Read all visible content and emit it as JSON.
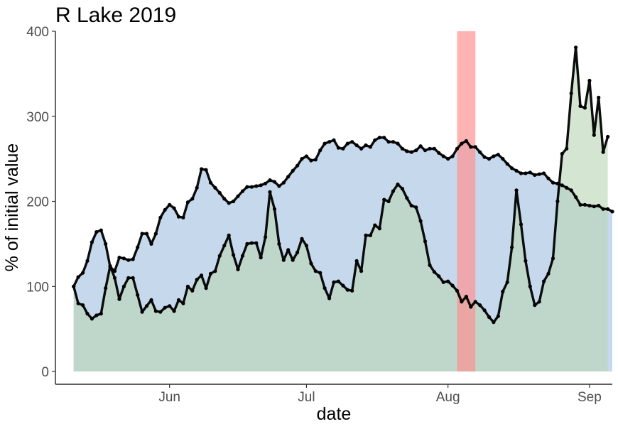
{
  "chart_data": {
    "type": "area",
    "title": "R Lake 2019",
    "xlabel": "date",
    "ylabel": "% of initial value",
    "xlim": [
      "2019-05-07",
      "2019-09-06"
    ],
    "ylim": [
      -15,
      400
    ],
    "x_ticks": [
      {
        "date": "2019-06-01",
        "label": "Jun"
      },
      {
        "date": "2019-07-01",
        "label": "Jul"
      },
      {
        "date": "2019-08-01",
        "label": "Aug"
      },
      {
        "date": "2019-09-01",
        "label": "Sep"
      }
    ],
    "y_ticks": [
      0,
      100,
      200,
      300,
      400
    ],
    "grid": false,
    "legend": "none",
    "highlight": {
      "start": "2019-08-03",
      "end": "2019-08-07",
      "color": "#ff8f8f"
    },
    "series": [
      {
        "color": "#c6d8ec",
        "points": [
          [
            "2019-05-11",
            100
          ],
          [
            "2019-05-12",
            111
          ],
          [
            "2019-05-13",
            116
          ],
          [
            "2019-05-14",
            130
          ],
          [
            "2019-05-15",
            152
          ],
          [
            "2019-05-16",
            164
          ],
          [
            "2019-05-17",
            166
          ],
          [
            "2019-05-18",
            150
          ],
          [
            "2019-05-19",
            123
          ],
          [
            "2019-05-20",
            118
          ],
          [
            "2019-05-21",
            134
          ],
          [
            "2019-05-22",
            133
          ],
          [
            "2019-05-23",
            131
          ],
          [
            "2019-05-24",
            132
          ],
          [
            "2019-05-25",
            146
          ],
          [
            "2019-05-26",
            162
          ],
          [
            "2019-05-27",
            162
          ],
          [
            "2019-05-28",
            150
          ],
          [
            "2019-05-29",
            162
          ],
          [
            "2019-05-30",
            181
          ],
          [
            "2019-05-31",
            190
          ],
          [
            "2019-06-01",
            196
          ],
          [
            "2019-06-02",
            192
          ],
          [
            "2019-06-03",
            182
          ],
          [
            "2019-06-04",
            181
          ],
          [
            "2019-06-05",
            199
          ],
          [
            "2019-06-06",
            203
          ],
          [
            "2019-06-07",
            216
          ],
          [
            "2019-06-08",
            238
          ],
          [
            "2019-06-09",
            237
          ],
          [
            "2019-06-10",
            222
          ],
          [
            "2019-06-11",
            216
          ],
          [
            "2019-06-12",
            210
          ],
          [
            "2019-06-13",
            203
          ],
          [
            "2019-06-14",
            198
          ],
          [
            "2019-06-15",
            200
          ],
          [
            "2019-06-16",
            206
          ],
          [
            "2019-06-17",
            212
          ],
          [
            "2019-06-18",
            217
          ],
          [
            "2019-06-19",
            217
          ],
          [
            "2019-06-20",
            218
          ],
          [
            "2019-06-21",
            219
          ],
          [
            "2019-06-22",
            221
          ],
          [
            "2019-06-23",
            225
          ],
          [
            "2019-06-24",
            223
          ],
          [
            "2019-06-25",
            218
          ],
          [
            "2019-06-26",
            222
          ],
          [
            "2019-06-27",
            229
          ],
          [
            "2019-06-28",
            236
          ],
          [
            "2019-06-29",
            242
          ],
          [
            "2019-06-30",
            250
          ],
          [
            "2019-07-01",
            253
          ],
          [
            "2019-07-02",
            248
          ],
          [
            "2019-07-03",
            249
          ],
          [
            "2019-07-04",
            260
          ],
          [
            "2019-07-05",
            268
          ],
          [
            "2019-07-06",
            270
          ],
          [
            "2019-07-07",
            272
          ],
          [
            "2019-07-08",
            263
          ],
          [
            "2019-07-09",
            262
          ],
          [
            "2019-07-10",
            268
          ],
          [
            "2019-07-11",
            270
          ],
          [
            "2019-07-12",
            266
          ],
          [
            "2019-07-13",
            262
          ],
          [
            "2019-07-14",
            266
          ],
          [
            "2019-07-15",
            264
          ],
          [
            "2019-07-16",
            272
          ],
          [
            "2019-07-17",
            275
          ],
          [
            "2019-07-18",
            275
          ],
          [
            "2019-07-19",
            270
          ],
          [
            "2019-07-20",
            270
          ],
          [
            "2019-07-21",
            268
          ],
          [
            "2019-07-22",
            262
          ],
          [
            "2019-07-23",
            259
          ],
          [
            "2019-07-24",
            258
          ],
          [
            "2019-07-25",
            260
          ],
          [
            "2019-07-26",
            265
          ],
          [
            "2019-07-27",
            260
          ],
          [
            "2019-07-28",
            262
          ],
          [
            "2019-07-29",
            262
          ],
          [
            "2019-07-30",
            257
          ],
          [
            "2019-07-31",
            253
          ],
          [
            "2019-08-01",
            250
          ],
          [
            "2019-08-02",
            253
          ],
          [
            "2019-08-03",
            262
          ],
          [
            "2019-08-04",
            268
          ],
          [
            "2019-08-05",
            271
          ],
          [
            "2019-08-06",
            264
          ],
          [
            "2019-08-07",
            264
          ],
          [
            "2019-08-08",
            258
          ],
          [
            "2019-08-09",
            252
          ],
          [
            "2019-08-10",
            250
          ],
          [
            "2019-08-11",
            253
          ],
          [
            "2019-08-12",
            255
          ],
          [
            "2019-08-13",
            250
          ],
          [
            "2019-08-14",
            244
          ],
          [
            "2019-08-15",
            239
          ],
          [
            "2019-08-16",
            236
          ],
          [
            "2019-08-17",
            233
          ],
          [
            "2019-08-18",
            233
          ],
          [
            "2019-08-19",
            234
          ],
          [
            "2019-08-20",
            231
          ],
          [
            "2019-08-21",
            232
          ],
          [
            "2019-08-22",
            233
          ],
          [
            "2019-08-23",
            227
          ],
          [
            "2019-08-24",
            222
          ],
          [
            "2019-08-25",
            221
          ],
          [
            "2019-08-26",
            219
          ],
          [
            "2019-08-27",
            216
          ],
          [
            "2019-08-28",
            213
          ],
          [
            "2019-08-29",
            205
          ],
          [
            "2019-08-30",
            196
          ],
          [
            "2019-08-31",
            196
          ],
          [
            "2019-09-01",
            195
          ],
          [
            "2019-09-02",
            194
          ],
          [
            "2019-09-03",
            195
          ],
          [
            "2019-09-04",
            191
          ],
          [
            "2019-09-05",
            191
          ],
          [
            "2019-09-06",
            188
          ]
        ]
      },
      {
        "color": "#b9d7b5",
        "points": [
          [
            "2019-05-11",
            100
          ],
          [
            "2019-05-12",
            80
          ],
          [
            "2019-05-13",
            78
          ],
          [
            "2019-05-14",
            68
          ],
          [
            "2019-05-15",
            62
          ],
          [
            "2019-05-16",
            66
          ],
          [
            "2019-05-17",
            68
          ],
          [
            "2019-05-18",
            98
          ],
          [
            "2019-05-19",
            124
          ],
          [
            "2019-05-20",
            110
          ],
          [
            "2019-05-21",
            85
          ],
          [
            "2019-05-22",
            100
          ],
          [
            "2019-05-23",
            110
          ],
          [
            "2019-05-24",
            110
          ],
          [
            "2019-05-25",
            90
          ],
          [
            "2019-05-26",
            70
          ],
          [
            "2019-05-27",
            77
          ],
          [
            "2019-05-28",
            84
          ],
          [
            "2019-05-29",
            71
          ],
          [
            "2019-05-30",
            70
          ],
          [
            "2019-05-31",
            75
          ],
          [
            "2019-06-01",
            77
          ],
          [
            "2019-06-02",
            71
          ],
          [
            "2019-06-03",
            84
          ],
          [
            "2019-06-04",
            80
          ],
          [
            "2019-06-05",
            100
          ],
          [
            "2019-06-06",
            95
          ],
          [
            "2019-06-07",
            108
          ],
          [
            "2019-06-08",
            113
          ],
          [
            "2019-06-09",
            98
          ],
          [
            "2019-06-10",
            115
          ],
          [
            "2019-06-11",
            118
          ],
          [
            "2019-06-12",
            136
          ],
          [
            "2019-06-13",
            148
          ],
          [
            "2019-06-14",
            160
          ],
          [
            "2019-06-15",
            137
          ],
          [
            "2019-06-16",
            120
          ],
          [
            "2019-06-17",
            136
          ],
          [
            "2019-06-18",
            150
          ],
          [
            "2019-06-19",
            151
          ],
          [
            "2019-06-20",
            151
          ],
          [
            "2019-06-21",
            134
          ],
          [
            "2019-06-22",
            158
          ],
          [
            "2019-06-23",
            211
          ],
          [
            "2019-06-24",
            191
          ],
          [
            "2019-06-25",
            150
          ],
          [
            "2019-06-26",
            131
          ],
          [
            "2019-06-27",
            143
          ],
          [
            "2019-06-28",
            131
          ],
          [
            "2019-06-29",
            140
          ],
          [
            "2019-06-30",
            156
          ],
          [
            "2019-07-01",
            148
          ],
          [
            "2019-07-02",
            127
          ],
          [
            "2019-07-03",
            118
          ],
          [
            "2019-07-04",
            116
          ],
          [
            "2019-07-05",
            98
          ],
          [
            "2019-07-06",
            86
          ],
          [
            "2019-07-07",
            105
          ],
          [
            "2019-07-08",
            106
          ],
          [
            "2019-07-09",
            101
          ],
          [
            "2019-07-10",
            96
          ],
          [
            "2019-07-11",
            95
          ],
          [
            "2019-07-12",
            130
          ],
          [
            "2019-07-13",
            118
          ],
          [
            "2019-07-14",
            160
          ],
          [
            "2019-07-15",
            160
          ],
          [
            "2019-07-16",
            172
          ],
          [
            "2019-07-17",
            168
          ],
          [
            "2019-07-18",
            202
          ],
          [
            "2019-07-19",
            200
          ],
          [
            "2019-07-20",
            212
          ],
          [
            "2019-07-21",
            220
          ],
          [
            "2019-07-22",
            215
          ],
          [
            "2019-07-23",
            204
          ],
          [
            "2019-07-24",
            195
          ],
          [
            "2019-07-25",
            193
          ],
          [
            "2019-07-26",
            177
          ],
          [
            "2019-07-27",
            153
          ],
          [
            "2019-07-28",
            125
          ],
          [
            "2019-07-29",
            117
          ],
          [
            "2019-07-30",
            112
          ],
          [
            "2019-07-31",
            105
          ],
          [
            "2019-08-01",
            106
          ],
          [
            "2019-08-02",
            101
          ],
          [
            "2019-08-03",
            95
          ],
          [
            "2019-08-04",
            82
          ],
          [
            "2019-08-05",
            88
          ],
          [
            "2019-08-06",
            76
          ],
          [
            "2019-08-07",
            82
          ],
          [
            "2019-08-08",
            78
          ],
          [
            "2019-08-09",
            72
          ],
          [
            "2019-08-10",
            64
          ],
          [
            "2019-08-11",
            58
          ],
          [
            "2019-08-12",
            65
          ],
          [
            "2019-08-13",
            94
          ],
          [
            "2019-08-14",
            105
          ],
          [
            "2019-08-15",
            146
          ],
          [
            "2019-08-16",
            213
          ],
          [
            "2019-08-17",
            173
          ],
          [
            "2019-08-18",
            130
          ],
          [
            "2019-08-19",
            100
          ],
          [
            "2019-08-20",
            78
          ],
          [
            "2019-08-21",
            82
          ],
          [
            "2019-08-22",
            106
          ],
          [
            "2019-08-23",
            115
          ],
          [
            "2019-08-24",
            133
          ],
          [
            "2019-08-25",
            200
          ],
          [
            "2019-08-26",
            256
          ],
          [
            "2019-08-27",
            262
          ],
          [
            "2019-08-28",
            327
          ],
          [
            "2019-08-29",
            381
          ],
          [
            "2019-08-30",
            312
          ],
          [
            "2019-08-31",
            310
          ],
          [
            "2019-09-01",
            342
          ],
          [
            "2019-09-02",
            278
          ],
          [
            "2019-09-03",
            322
          ],
          [
            "2019-09-04",
            258
          ],
          [
            "2019-09-05",
            276
          ]
        ]
      }
    ]
  }
}
